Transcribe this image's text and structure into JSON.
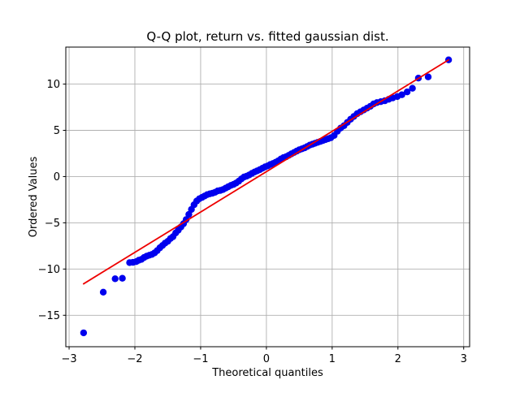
{
  "window": {
    "background": "#ffffff"
  },
  "chart_data": {
    "type": "scatter",
    "title": "Q-Q plot, return vs. fitted gaussian dist.",
    "xlabel": "Theoretical quantiles",
    "ylabel": "Ordered Values",
    "xlim": [
      -3.05,
      3.09
    ],
    "ylim": [
      -18.4,
      14.0
    ],
    "xticks": [
      -3,
      -2,
      -1,
      0,
      1,
      2,
      3
    ],
    "yticks": [
      -15,
      -10,
      -5,
      0,
      5,
      10
    ],
    "grid": true,
    "grid_color": "#b0b0b0",
    "frame_color": "#000000",
    "marker_color": "#0000ee",
    "marker_radius": 4.2,
    "fit_line_color": "#ee0000",
    "fit_line": {
      "x1": -2.78,
      "y1": -11.6,
      "x2": 2.77,
      "y2": 12.62
    },
    "points": [
      [
        -2.78,
        -16.9
      ],
      [
        -2.48,
        -12.5
      ],
      [
        -2.3,
        -11.05
      ],
      [
        -2.19,
        -11.0
      ],
      [
        -2.08,
        -9.3
      ],
      [
        -2.03,
        -9.28
      ],
      [
        -1.98,
        -9.2
      ],
      [
        -1.94,
        -9.05
      ],
      [
        -1.9,
        -8.95
      ],
      [
        -1.86,
        -8.75
      ],
      [
        -1.82,
        -8.6
      ],
      [
        -1.78,
        -8.5
      ],
      [
        -1.74,
        -8.42
      ],
      [
        -1.7,
        -8.25
      ],
      [
        -1.66,
        -8.0
      ],
      [
        -1.62,
        -7.7
      ],
      [
        -1.58,
        -7.45
      ],
      [
        -1.54,
        -7.2
      ],
      [
        -1.5,
        -7.0
      ],
      [
        -1.46,
        -6.7
      ],
      [
        -1.42,
        -6.5
      ],
      [
        -1.38,
        -6.1
      ],
      [
        -1.34,
        -5.8
      ],
      [
        -1.3,
        -5.45
      ],
      [
        -1.26,
        -5.1
      ],
      [
        -1.22,
        -4.65
      ],
      [
        -1.18,
        -4.1
      ],
      [
        -1.14,
        -3.55
      ],
      [
        -1.1,
        -3.05
      ],
      [
        -1.06,
        -2.65
      ],
      [
        -1.02,
        -2.4
      ],
      [
        -0.98,
        -2.25
      ],
      [
        -0.94,
        -2.1
      ],
      [
        -0.9,
        -1.95
      ],
      [
        -0.86,
        -1.87
      ],
      [
        -0.82,
        -1.8
      ],
      [
        -0.78,
        -1.7
      ],
      [
        -0.74,
        -1.55
      ],
      [
        -0.7,
        -1.5
      ],
      [
        -0.66,
        -1.4
      ],
      [
        -0.62,
        -1.25
      ],
      [
        -0.58,
        -1.1
      ],
      [
        -0.54,
        -0.95
      ],
      [
        -0.5,
        -0.85
      ],
      [
        -0.46,
        -0.7
      ],
      [
        -0.42,
        -0.5
      ],
      [
        -0.38,
        -0.25
      ],
      [
        -0.34,
        -0.05
      ],
      [
        -0.3,
        0.05
      ],
      [
        -0.26,
        0.18
      ],
      [
        -0.22,
        0.35
      ],
      [
        -0.18,
        0.5
      ],
      [
        -0.14,
        0.62
      ],
      [
        -0.1,
        0.75
      ],
      [
        -0.06,
        0.9
      ],
      [
        -0.02,
        1.05
      ],
      [
        0.02,
        1.15
      ],
      [
        0.06,
        1.3
      ],
      [
        0.1,
        1.42
      ],
      [
        0.14,
        1.55
      ],
      [
        0.18,
        1.7
      ],
      [
        0.22,
        1.9
      ],
      [
        0.26,
        2.05
      ],
      [
        0.3,
        2.15
      ],
      [
        0.34,
        2.3
      ],
      [
        0.38,
        2.45
      ],
      [
        0.42,
        2.6
      ],
      [
        0.46,
        2.75
      ],
      [
        0.5,
        2.9
      ],
      [
        0.54,
        3.0
      ],
      [
        0.58,
        3.1
      ],
      [
        0.62,
        3.25
      ],
      [
        0.66,
        3.4
      ],
      [
        0.7,
        3.5
      ],
      [
        0.74,
        3.6
      ],
      [
        0.78,
        3.7
      ],
      [
        0.82,
        3.8
      ],
      [
        0.86,
        3.9
      ],
      [
        0.9,
        4.0
      ],
      [
        0.94,
        4.1
      ],
      [
        0.98,
        4.2
      ],
      [
        1.03,
        4.45
      ],
      [
        1.08,
        4.9
      ],
      [
        1.13,
        5.25
      ],
      [
        1.18,
        5.5
      ],
      [
        1.23,
        5.85
      ],
      [
        1.28,
        6.2
      ],
      [
        1.33,
        6.5
      ],
      [
        1.38,
        6.8
      ],
      [
        1.43,
        7.0
      ],
      [
        1.48,
        7.2
      ],
      [
        1.53,
        7.4
      ],
      [
        1.58,
        7.6
      ],
      [
        1.63,
        7.85
      ],
      [
        1.68,
        8.0
      ],
      [
        1.74,
        8.1
      ],
      [
        1.8,
        8.2
      ],
      [
        1.86,
        8.35
      ],
      [
        1.92,
        8.5
      ],
      [
        1.99,
        8.65
      ],
      [
        2.06,
        8.85
      ],
      [
        2.14,
        9.15
      ],
      [
        2.22,
        9.55
      ],
      [
        2.31,
        10.65
      ],
      [
        2.46,
        10.78
      ],
      [
        2.77,
        12.62
      ]
    ]
  }
}
